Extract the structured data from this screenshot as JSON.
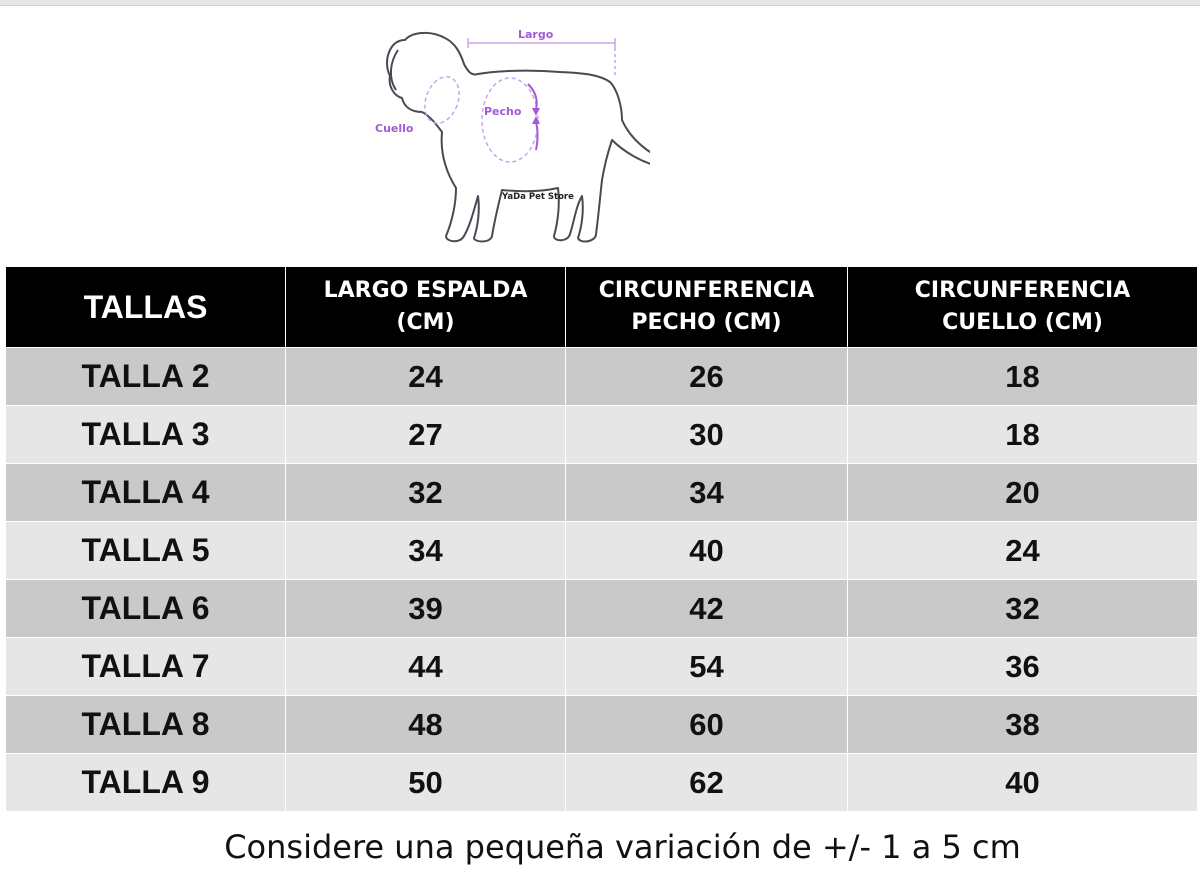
{
  "illustration": {
    "labels": {
      "largo": "Largo",
      "pecho": "Pecho",
      "cuello": "Cuello",
      "brand": "YaDa Pet Store"
    },
    "accent_color": "#a35ad6"
  },
  "table": {
    "headers": [
      {
        "line1": "TALLAS",
        "line2": ""
      },
      {
        "line1": "LARGO ESPALDA",
        "line2": "(CM)"
      },
      {
        "line1": "CIRCUNFERENCIA",
        "line2": "PECHO (CM)"
      },
      {
        "line1": "CIRCUNFERENCIA",
        "line2": "CUELLO (CM)"
      }
    ],
    "rows": [
      [
        "TALLA 2",
        "24",
        "26",
        "18"
      ],
      [
        "TALLA 3",
        "27",
        "30",
        "18"
      ],
      [
        "TALLA 4",
        "32",
        "34",
        "20"
      ],
      [
        "TALLA 5",
        "34",
        "40",
        "24"
      ],
      [
        "TALLA 6",
        "39",
        "42",
        "32"
      ],
      [
        "TALLA 7",
        "44",
        "54",
        "36"
      ],
      [
        "TALLA 8",
        "48",
        "60",
        "38"
      ],
      [
        "TALLA 9",
        "50",
        "62",
        "40"
      ]
    ]
  },
  "footnote": "Considere una pequeña variación de +/- 1 a 5 cm"
}
